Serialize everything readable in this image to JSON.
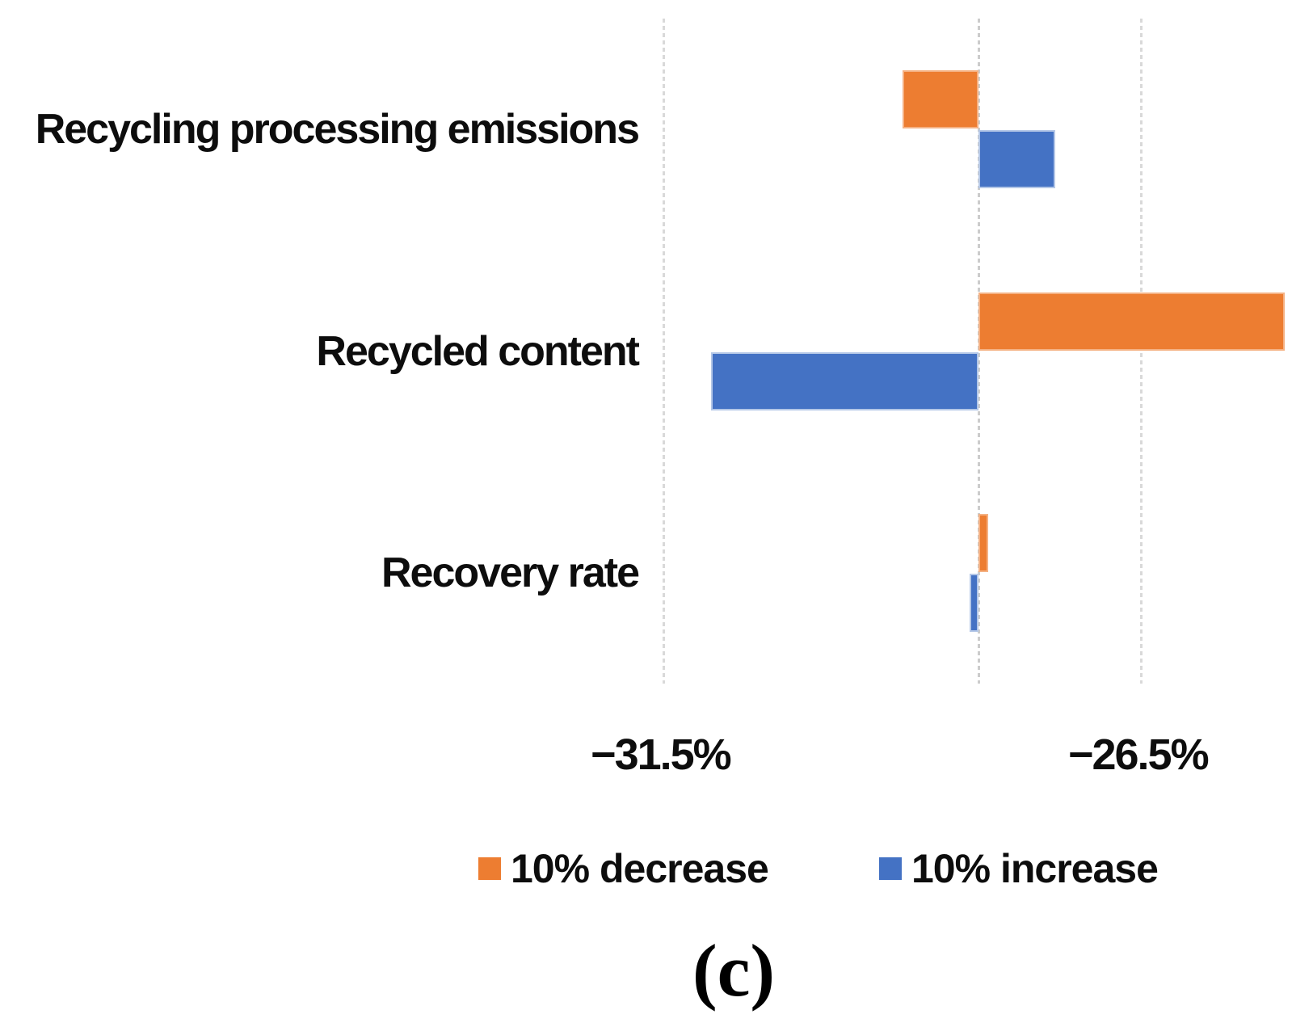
{
  "figure": {
    "caption": "(c)"
  },
  "chart_data": {
    "type": "bar",
    "orientation": "horizontal",
    "variant": "tornado-sensitivity",
    "title": "",
    "xlabel": "",
    "ylabel": "",
    "categories": [
      "Recycling processing emissions",
      "Recycled content",
      "Recovery rate"
    ],
    "baseline_value": -28.2,
    "series": [
      {
        "name": "10% decrease",
        "color": "#ED7D31",
        "border_color": "#F5B183",
        "values": [
          -29.0,
          -25.0,
          -28.1
        ]
      },
      {
        "name": "10% increase",
        "color": "#4472C4",
        "border_color": "#B4C7E7",
        "values": [
          -27.4,
          -31.0,
          -28.3
        ]
      }
    ],
    "x_axis": {
      "unit": "%",
      "tick_values": [
        -31.5,
        -26.5
      ],
      "tick_labels": [
        "−31.5%",
        "−26.5%"
      ],
      "xlim": [
        -38.45,
        -24.7
      ],
      "grid": true,
      "gridline_color": "#D9D9D9",
      "axis_line_value": -28.2
    },
    "legend": {
      "position": "bottom",
      "entries": [
        {
          "label": "10% decrease",
          "color": "#ED7D31"
        },
        {
          "label": "10% increase",
          "color": "#4472C4"
        }
      ]
    }
  }
}
